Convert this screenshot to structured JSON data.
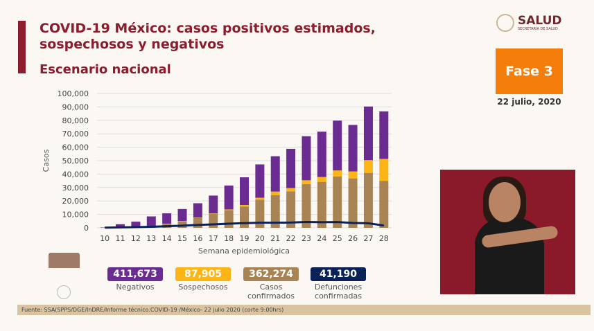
{
  "header": {
    "title": "COVID-19 México: casos positivos estimados, sospechosos y negativos",
    "subtitle": "Escenario nacional"
  },
  "logo": {
    "name": "SALUD",
    "sub": "SECRETARÍA DE SALUD"
  },
  "phase": {
    "label": "Fase 3",
    "date": "22 julio, 2020",
    "color": "#f57e0a"
  },
  "kpis": [
    {
      "value": "411,673",
      "label": "Negativos",
      "color": "#6a2c91"
    },
    {
      "value": "87,905",
      "label": "Sospechosos",
      "color": "#fdb515"
    },
    {
      "value": "362,274",
      "label": "Casos confirmados",
      "color": "#a88454"
    },
    {
      "value": "41,190",
      "label": "Defunciones confirmadas",
      "color": "#0b2258"
    }
  ],
  "footer": "Fuente: SSA(SPPS/DGE/InDRE/Informe técnico.COVID-19 /México- 22 julio 2020 (corte 9:00hrs)",
  "chart_data": {
    "type": "bar",
    "stacked": true,
    "xlabel": "Semana epidemiológica",
    "ylabel": "Casos",
    "ylim": [
      0,
      100000
    ],
    "yticks": [
      "0",
      "10,000",
      "20,000",
      "30,000",
      "40,000",
      "50,000",
      "60,000",
      "70,000",
      "80,000",
      "90,000",
      "100,000"
    ],
    "grid": true,
    "categories": [
      "10",
      "11",
      "12",
      "13",
      "14",
      "15",
      "16",
      "17",
      "18",
      "19",
      "20",
      "21",
      "22",
      "23",
      "24",
      "25",
      "26",
      "27",
      "28"
    ],
    "series": [
      {
        "key": "confirmados",
        "color": "#a88454",
        "values": [
          100,
          300,
          500,
          1000,
          2900,
          4800,
          7300,
          10300,
          13200,
          15900,
          21000,
          24400,
          27200,
          32600,
          34200,
          38300,
          36800,
          40900,
          35000
        ]
      },
      {
        "key": "sospechosos",
        "color": "#fdb515",
        "values": [
          0,
          0,
          0,
          0,
          200,
          300,
          300,
          400,
          500,
          1100,
          1400,
          2600,
          2400,
          2800,
          3600,
          4400,
          5200,
          9500,
          16300
        ]
      },
      {
        "key": "negativos",
        "color": "#6a2c91",
        "values": [
          200,
          2400,
          4100,
          7500,
          7700,
          8900,
          10700,
          13300,
          17800,
          20600,
          24800,
          26300,
          29200,
          32800,
          33800,
          37100,
          34600,
          39900,
          35400
        ]
      }
    ],
    "line": {
      "key": "defunciones",
      "type": "line",
      "color": "#0b2258",
      "values": [
        100,
        300,
        500,
        800,
        1200,
        1600,
        2100,
        2600,
        3100,
        3500,
        3800,
        3800,
        3900,
        4400,
        4200,
        4300,
        3600,
        3400,
        1700
      ]
    }
  }
}
